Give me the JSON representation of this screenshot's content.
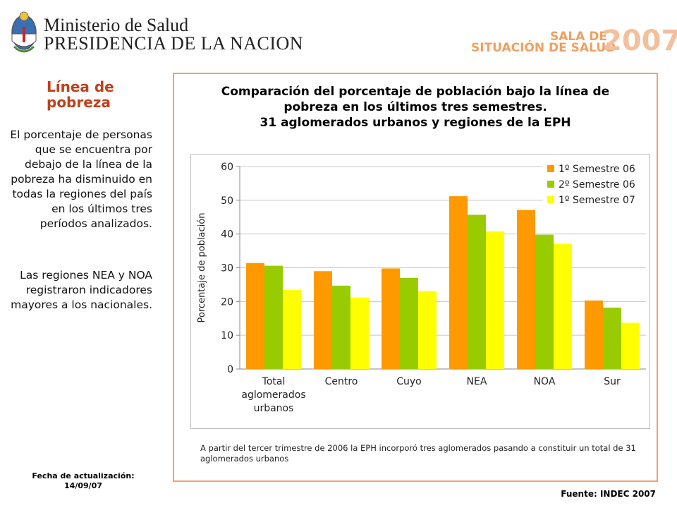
{
  "header": {
    "ministry": "Ministerio de Salud",
    "presidency": "PRESIDENCIA DE LA NACION",
    "sala_line1": "SALA DE",
    "sala_line2": "SITUACIÓN DE SALUD",
    "sala_year": "2007"
  },
  "sidebar": {
    "title": "Línea de pobreza",
    "paragraph1": "El porcentaje de personas que se encuentra por debajo de la línea de la pobreza ha disminuido en todas la regiones del país en los últimos tres períodos analizados.",
    "paragraph2": "Las regiones NEA y NOA registraron indicadores mayores a los nacionales.",
    "update_label": "Fecha de actualización:",
    "update_date": "14/09/07"
  },
  "chart_title_lines": [
    "Comparación del porcentaje de población  bajo la línea de",
    "pobreza en los últimos tres semestres.",
    "31 aglomerados urbanos y  regiones de la EPH"
  ],
  "footnote": "A partir del  tercer trimestre de 2006 la EPH incorporó tres aglomerados pasando a constituir un total de 31 aglomerados urbanos",
  "source": "Fuente: INDEC 2007",
  "chart_data": {
    "type": "bar",
    "title": "Comparación del porcentaje de población  bajo la línea de pobreza en los últimos tres semestres. 31 aglomerados urbanos y  regiones de la EPH",
    "xlabel": "",
    "ylabel": "Porcentaje de población",
    "ylim": [
      0,
      60
    ],
    "yticks": [
      0,
      10,
      20,
      30,
      40,
      50,
      60
    ],
    "grid": true,
    "legend_position": "top-right",
    "categories": [
      [
        "Total",
        "aglomerados",
        "urbanos"
      ],
      [
        "Centro"
      ],
      [
        "Cuyo"
      ],
      [
        "NEA"
      ],
      [
        "NOA"
      ],
      [
        "Sur"
      ]
    ],
    "series": [
      {
        "name": "1º Semestre 06",
        "color": "#ff9900",
        "values": [
          31.4,
          29.0,
          29.8,
          51.2,
          47.1,
          20.3
        ]
      },
      {
        "name": "2º Semestre 06",
        "color": "#99cc00",
        "values": [
          30.6,
          24.7,
          27.0,
          45.7,
          39.8,
          18.2
        ]
      },
      {
        "name": "1º Semestre 07",
        "color": "#ffff00",
        "values": [
          23.4,
          21.2,
          23.1,
          40.8,
          37.1,
          13.7
        ]
      }
    ]
  }
}
